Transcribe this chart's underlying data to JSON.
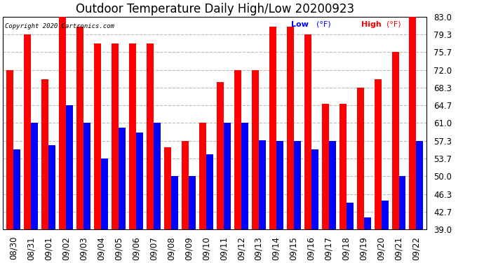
{
  "title": "Outdoor Temperature Daily High/Low 20200923",
  "copyright": "Copyright 2020 Cartronics.com",
  "legend_low": "Low",
  "legend_high": "High",
  "legend_unit": "(°F)",
  "ylim": [
    39.0,
    83.0
  ],
  "yticks": [
    39.0,
    42.7,
    46.3,
    50.0,
    53.7,
    57.3,
    61.0,
    64.7,
    68.3,
    72.0,
    75.7,
    79.3,
    83.0
  ],
  "background_color": "#ffffff",
  "bar_color_high": "#ff0000",
  "bar_color_low": "#0000ff",
  "dates": [
    "08/30",
    "08/31",
    "09/01",
    "09/02",
    "09/03",
    "09/04",
    "09/05",
    "09/06",
    "09/07",
    "09/08",
    "09/09",
    "09/10",
    "09/11",
    "09/12",
    "09/13",
    "09/14",
    "09/15",
    "09/16",
    "09/17",
    "09/18",
    "09/19",
    "09/20",
    "09/21",
    "09/22"
  ],
  "highs": [
    72.0,
    79.3,
    70.0,
    83.0,
    81.0,
    77.5,
    77.5,
    77.5,
    77.5,
    56.0,
    57.3,
    61.0,
    69.5,
    72.0,
    72.0,
    81.0,
    81.0,
    79.3,
    65.0,
    65.0,
    68.3,
    70.0,
    75.7,
    83.0
  ],
  "lows": [
    55.5,
    61.0,
    56.5,
    64.7,
    61.0,
    53.7,
    60.0,
    59.0,
    61.0,
    50.0,
    50.0,
    54.5,
    61.0,
    61.0,
    57.5,
    57.3,
    57.3,
    55.5,
    57.3,
    44.5,
    41.5,
    45.0,
    50.0,
    57.3
  ],
  "grid_color": "#bbbbbb",
  "title_fontsize": 12,
  "tick_fontsize": 8.5,
  "bar_width": 0.4
}
